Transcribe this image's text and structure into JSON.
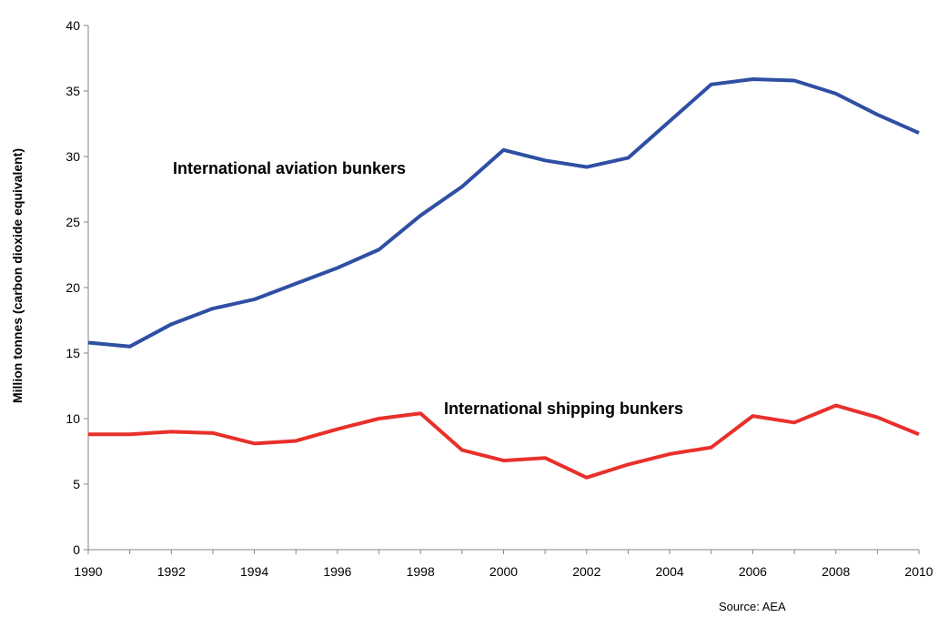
{
  "chart_data": {
    "type": "line",
    "title": "",
    "xlabel": "",
    "ylabel": "Million tonnes (carbon dioxide equivalent)",
    "xlim": [
      1990,
      2010
    ],
    "ylim": [
      0,
      40
    ],
    "x_ticks": [
      1990,
      1992,
      1994,
      1996,
      1998,
      2000,
      2002,
      2004,
      2006,
      2008,
      2010
    ],
    "y_ticks": [
      0,
      5,
      10,
      15,
      20,
      25,
      30,
      35,
      40
    ],
    "grid": false,
    "x": [
      1990,
      1991,
      1992,
      1993,
      1994,
      1995,
      1996,
      1997,
      1998,
      1999,
      2000,
      2001,
      2002,
      2003,
      2004,
      2005,
      2006,
      2007,
      2008,
      2009,
      2010
    ],
    "series": [
      {
        "name": "International aviation bunkers",
        "color": "#2e4fa3",
        "values": [
          15.8,
          15.5,
          17.2,
          18.4,
          19.1,
          20.3,
          21.5,
          22.9,
          25.5,
          27.7,
          30.5,
          29.7,
          29.2,
          29.9,
          32.7,
          35.5,
          35.9,
          35.8,
          34.8,
          33.2,
          31.8
        ]
      },
      {
        "name": "International shipping bunkers",
        "color": "#e8302a",
        "values": [
          8.8,
          8.8,
          9.0,
          8.9,
          8.1,
          8.3,
          9.2,
          10.0,
          10.4,
          7.6,
          6.8,
          7.0,
          5.5,
          6.5,
          7.3,
          7.8,
          10.2,
          9.7,
          11.0,
          10.1,
          8.8
        ]
      }
    ],
    "annotations": [
      {
        "text": "International aviation bunkers",
        "series": 0
      },
      {
        "text": "International shipping bunkers",
        "series": 1
      }
    ],
    "source": "Source: AEA"
  }
}
